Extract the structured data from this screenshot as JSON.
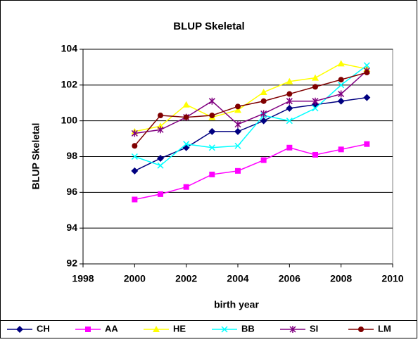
{
  "chart_data": {
    "type": "line",
    "title": "BLUP Skeletal",
    "x_label": "birth year",
    "y_label": "BLUP Skeletal",
    "x": [
      2000,
      2001,
      2002,
      2003,
      2004,
      2005,
      2006,
      2007,
      2008,
      2009
    ],
    "xlim": [
      1998,
      2010
    ],
    "xticks": [
      1998,
      2000,
      2002,
      2004,
      2006,
      2008,
      2010
    ],
    "ylim": [
      92,
      104
    ],
    "yticks": [
      92,
      94,
      96,
      98,
      100,
      102,
      104
    ],
    "grid": true,
    "legend": "bottom",
    "series": [
      {
        "name": "CH",
        "color": "#000080",
        "marker": "diamond",
        "values": [
          97.2,
          97.9,
          98.5,
          99.4,
          99.4,
          100.0,
          100.7,
          100.9,
          101.1,
          101.3
        ]
      },
      {
        "name": "AA",
        "color": "#ff00ff",
        "marker": "square",
        "values": [
          95.6,
          95.9,
          96.3,
          97.0,
          97.2,
          97.8,
          98.5,
          98.1,
          98.4,
          98.7
        ]
      },
      {
        "name": "HE",
        "color": "#ffff00",
        "marker": "triangle",
        "values": [
          99.4,
          99.7,
          100.9,
          100.2,
          100.6,
          101.6,
          102.2,
          102.4,
          103.2,
          102.9
        ]
      },
      {
        "name": "BB",
        "color": "#00ffff",
        "marker": "x",
        "values": [
          98.0,
          97.5,
          98.7,
          98.5,
          98.6,
          100.3,
          100.0,
          100.7,
          102.0,
          103.1
        ]
      },
      {
        "name": "SI",
        "color": "#800080",
        "marker": "star",
        "values": [
          99.3,
          99.5,
          100.2,
          101.1,
          99.8,
          100.4,
          101.1,
          101.1,
          101.5,
          102.8
        ]
      },
      {
        "name": "LM",
        "color": "#800000",
        "marker": "circle",
        "values": [
          98.6,
          100.3,
          100.2,
          100.3,
          100.8,
          101.1,
          101.5,
          101.9,
          102.3,
          102.7
        ]
      }
    ]
  }
}
